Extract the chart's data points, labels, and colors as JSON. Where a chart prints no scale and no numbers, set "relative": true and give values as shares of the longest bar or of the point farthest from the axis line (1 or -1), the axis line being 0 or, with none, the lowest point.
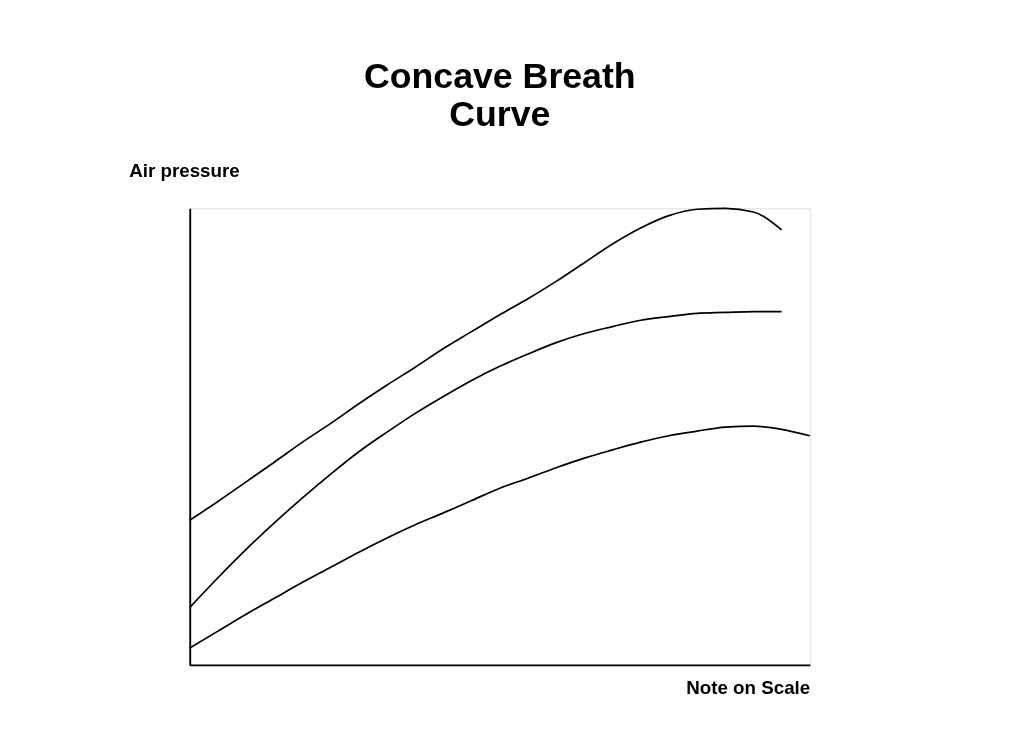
{
  "chart_data": {
    "type": "line",
    "title": "Concave Breath Curve",
    "xlabel": "Note on Scale",
    "ylabel": "Air pressure",
    "relative": true,
    "legend": false,
    "grid": false,
    "marker": "none",
    "line_style": "solid",
    "categories": [
      null,
      null,
      null,
      null,
      null,
      null,
      null,
      null,
      null,
      null,
      null,
      null,
      null,
      null,
      null,
      null,
      null,
      null,
      null,
      null,
      null,
      null,
      null
    ],
    "series": [
      {
        "color": "#000000",
        "values": [
          0.317,
          0.358,
          0.401,
          0.444,
          0.488,
          0.529,
          0.572,
          0.613,
          0.652,
          0.693,
          0.73,
          0.767,
          0.802,
          0.84,
          0.881,
          0.922,
          0.957,
          0.984,
          0.998,
          1.0,
          0.992,
          0.953,
          null
        ]
      },
      {
        "color": "#000000",
        "values": [
          0.126,
          0.191,
          0.253,
          0.311,
          0.366,
          0.418,
          0.467,
          0.51,
          0.551,
          0.588,
          0.623,
          0.654,
          0.681,
          0.706,
          0.726,
          0.741,
          0.755,
          0.763,
          0.77,
          0.772,
          0.774,
          0.774,
          null
        ]
      },
      {
        "color": "#000000",
        "values": [
          0.037,
          0.074,
          0.111,
          0.146,
          0.181,
          0.214,
          0.247,
          0.278,
          0.307,
          0.333,
          0.36,
          0.387,
          0.409,
          0.432,
          0.453,
          0.471,
          0.488,
          0.502,
          0.512,
          0.521,
          0.523,
          0.516,
          0.502
        ]
      }
    ]
  }
}
